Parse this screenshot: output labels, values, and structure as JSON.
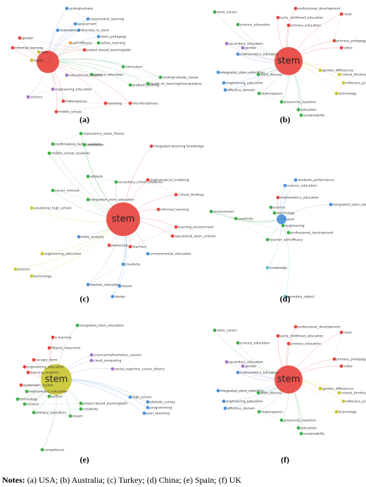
{
  "panels": [
    {
      "caption": "(a)",
      "nodes": [
        "undergraduate",
        "experiential_learning",
        "assessment",
        "motivation",
        "diversity_in_stem",
        "stem_pedagogy",
        "active_learning",
        "self-efficacy",
        "gender",
        "project-based_learning(pbl)",
        "informal_learning",
        "race",
        "equity",
        "curriculum",
        "educational_robotics",
        "science_education",
        "undergraduate_resear",
        "hands-on_learning/manipulative",
        "problem_solving",
        "engineering_education",
        "science",
        "makerspaces",
        "teaching",
        "interdisciplinary",
        "middle_school"
      ]
    },
    {
      "caption": "(b)",
      "hub": "stem",
      "nodes": [
        "professional_development",
        "stem_career",
        "early_childhood_education",
        "primary_education",
        "science_education",
        "need",
        "primary_pedagogy",
        "secondary_education",
        "gender",
        "video",
        "mathematics_education",
        "gender_differences",
        "integrated_stem_education",
        "critical_thinking",
        "stem_literacy",
        "engineering_education",
        "reflective_practice",
        "technology",
        "affective_domain",
        "makerspaces",
        "preservice_teachers",
        "education",
        "sustainability"
      ]
    },
    {
      "caption": "(c)",
      "hub": "stem",
      "nodes": [
        "expectancy_value_theory",
        "confirmatory_factor_analysis",
        "motivation",
        "middle_school_students",
        "integrated teaching knowledge",
        "attitude",
        "secondary_school_students",
        "mathematical_modeling",
        "critical_thinking",
        "career_interest",
        "integrated_stem_education",
        "vocational_high_school",
        "informal_learning",
        "meta_analysis",
        "engineering_education",
        "preservice",
        "teachers",
        "learning_environment",
        "specialized_stem_schools",
        "science",
        "technology",
        "environmental_education",
        "creativity",
        "teacher_education",
        "steam",
        "design"
      ]
    },
    {
      "caption": "(d)",
      "nodes": [
        "students_performance",
        "science_education",
        "mathematics_education",
        "integrated_stem_education",
        "science",
        "technology",
        "stem",
        "engineering",
        "professional_development",
        "environment",
        "creativity",
        "teacher_self-efficacy",
        "knowledge",
        "boundary_object"
      ]
    },
    {
      "caption": "(e)",
      "hub": "stem",
      "nodes": [
        "integrated_stem_education",
        "e-learning",
        "flipped_classroom",
        "science/mathematics_careers",
        "cloud_computing",
        "escape_room",
        "engineering_education",
        "learning_analytics",
        "social_cognitive_career_theory",
        "systematic_review",
        "mathematics_education",
        "python",
        "technology",
        "science",
        "project-based_learning(pbl)",
        "creativity",
        "primary_education",
        "steam",
        "high_school",
        "attitude_survey",
        "programming",
        "peer_teaching",
        "competence"
      ]
    },
    {
      "caption": "(f)",
      "hub": "stem",
      "nodes": [
        "professional_development",
        "stem_career",
        "early_childhood_education",
        "primary_education",
        "science_education",
        "need",
        "primary_pedagogy",
        "secondary_education",
        "gender",
        "video",
        "mathematics_education",
        "gender_differences",
        "integrated_stem_education",
        "critical_thinking",
        "stem_literacy",
        "engineering_education",
        "reflective_practice",
        "technology",
        "affective_domain",
        "makerspaces",
        "preservice_teachers",
        "education",
        "sustainability"
      ]
    }
  ],
  "notes": {
    "label": "Notes:",
    "text": "(a) USA; (b) Australia; (c) Turkey; (d) China; (e) Spain; (f) UK"
  }
}
